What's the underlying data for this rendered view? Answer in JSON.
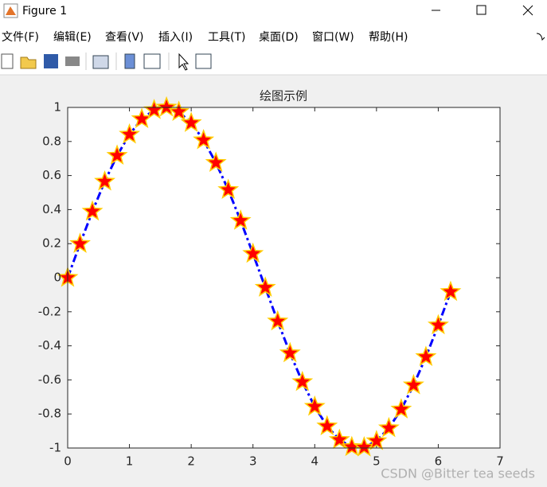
{
  "window": {
    "title": "Figure 1",
    "menu": [
      "文件(F)",
      "编辑(E)",
      "查看(V)",
      "插入(I)",
      "工具(T)",
      "桌面(D)",
      "窗口(W)",
      "帮助(H)"
    ],
    "watermark": "CSDN @Bitter tea seeds"
  },
  "chart_data": {
    "type": "line",
    "title": "绘图示例",
    "x": [
      0,
      0.2,
      0.4,
      0.6,
      0.8,
      1.0,
      1.2,
      1.4,
      1.6,
      1.8,
      2.0,
      2.2,
      2.4,
      2.6,
      2.8,
      3.0,
      3.2,
      3.4,
      3.6,
      3.8,
      4.0,
      4.2,
      4.4,
      4.6,
      4.8,
      5.0,
      5.2,
      5.4,
      5.6,
      5.8,
      6.0,
      6.2
    ],
    "series": [
      {
        "color": "#0000ff",
        "line_style": "dashdot",
        "marker": "pentagram",
        "marker_face_color": "#ff0000",
        "marker_edge_color": "#ffcc00",
        "values": [
          0,
          0.199,
          0.389,
          0.565,
          0.717,
          0.841,
          0.932,
          0.985,
          1.0,
          0.974,
          0.909,
          0.808,
          0.675,
          0.516,
          0.335,
          0.141,
          -0.058,
          -0.256,
          -0.443,
          -0.612,
          -0.757,
          -0.872,
          -0.952,
          -0.994,
          -0.996,
          -0.959,
          -0.883,
          -0.773,
          -0.631,
          -0.465,
          -0.279,
          -0.083
        ]
      }
    ],
    "xlim": [
      0,
      7
    ],
    "xticks": [
      0,
      1,
      2,
      3,
      4,
      5,
      6,
      7
    ],
    "ylim": [
      -1,
      1
    ],
    "yticks": [
      -1,
      -0.8,
      -0.6,
      -0.4,
      -0.2,
      0,
      0.2,
      0.4,
      0.6,
      0.8,
      1
    ]
  }
}
